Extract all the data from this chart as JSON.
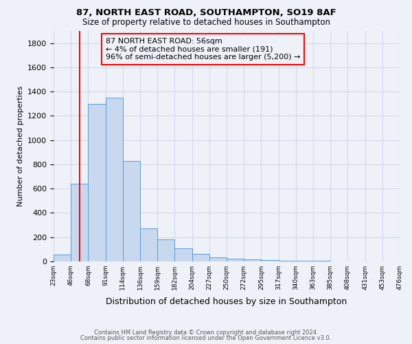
{
  "title": "87, NORTH EAST ROAD, SOUTHAMPTON, SO19 8AF",
  "subtitle": "Size of property relative to detached houses in Southampton",
  "xlabel": "Distribution of detached houses by size in Southampton",
  "ylabel": "Number of detached properties",
  "bar_values": [
    55,
    640,
    1300,
    1350,
    830,
    270,
    180,
    105,
    65,
    35,
    25,
    15,
    10,
    8,
    5,
    3,
    2,
    1,
    1,
    1
  ],
  "bin_labels": [
    "23sqm",
    "46sqm",
    "68sqm",
    "91sqm",
    "114sqm",
    "136sqm",
    "159sqm",
    "182sqm",
    "204sqm",
    "227sqm",
    "250sqm",
    "272sqm",
    "295sqm",
    "317sqm",
    "340sqm",
    "363sqm",
    "385sqm",
    "408sqm",
    "431sqm",
    "453sqm",
    "476sqm"
  ],
  "bar_color": "#c8d9ef",
  "bar_edge_color": "#5b9bd5",
  "grid_color": "#d0d8e8",
  "background_color": "#eef2f8",
  "ylim": [
    0,
    1900
  ],
  "red_line_bin": 1.5,
  "annotation_text": "87 NORTH EAST ROAD: 56sqm\n← 4% of detached houses are smaller (191)\n96% of semi-detached houses are larger (5,200) →",
  "footnote1": "Contains HM Land Registry data © Crown copyright and database right 2024.",
  "footnote2": "Contains public sector information licensed under the Open Government Licence v3.0."
}
